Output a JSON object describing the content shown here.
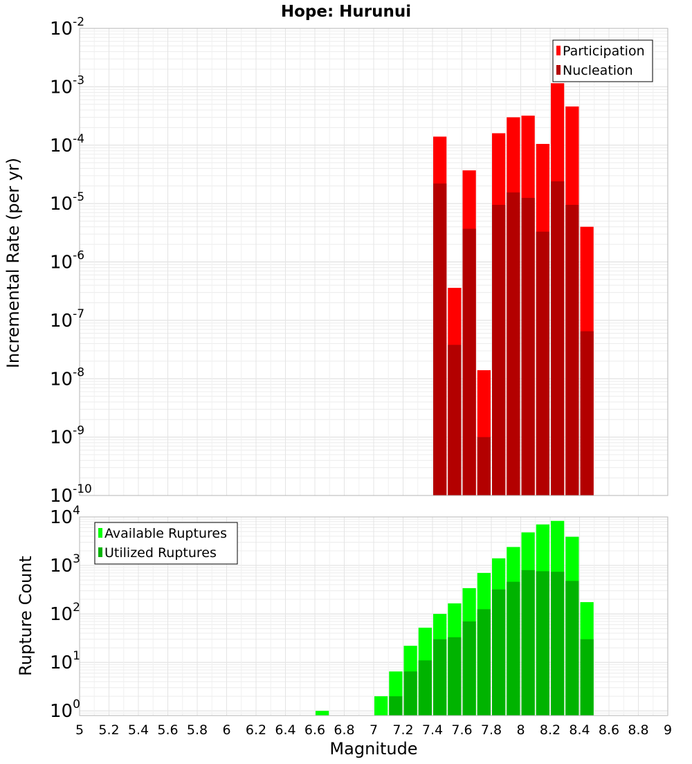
{
  "chart_data": [
    {
      "type": "bar",
      "title": "Hope: Hurunui",
      "xlabel": "",
      "ylabel": "Incremental Rate (per yr)",
      "yscale": "log",
      "xlim": [
        5,
        9
      ],
      "ylim": [
        1e-10,
        0.01
      ],
      "ytick_exponents": [
        -10,
        -9,
        -8,
        -7,
        -6,
        -5,
        -4,
        -3,
        -2
      ],
      "grid": true,
      "legend_position": "top-right",
      "bar_width": 0.1,
      "x": [
        7.45,
        7.55,
        7.65,
        7.75,
        7.85,
        7.95,
        8.05,
        8.15,
        8.25,
        8.35,
        8.45
      ],
      "series": [
        {
          "name": "Participation",
          "color": "#ff0000",
          "values": [
            0.00014,
            3.6e-07,
            3.7e-05,
            1.4e-08,
            0.00016,
            0.0003,
            0.00032,
            0.000105,
            0.00115,
            0.00046,
            4e-06
          ]
        },
        {
          "name": "Nucleation",
          "color": "#b30000",
          "values": [
            2.2e-05,
            3.8e-08,
            3.7e-06,
            1e-09,
            9.5e-06,
            1.55e-05,
            1.25e-05,
            3.3e-06,
            2.4e-05,
            9.5e-06,
            6.5e-08
          ]
        }
      ]
    },
    {
      "type": "bar",
      "title": "",
      "xlabel": "Magnitude",
      "ylabel": "Rupture Count",
      "yscale": "log",
      "xlim": [
        5,
        9
      ],
      "ylim": [
        0.8,
        10000
      ],
      "ytick_exponents": [
        0,
        1,
        2,
        3,
        4
      ],
      "xticks": [
        "5",
        "5.2",
        "5.4",
        "5.6",
        "5.8",
        "6",
        "6.2",
        "6.4",
        "6.6",
        "6.8",
        "7",
        "7.2",
        "7.4",
        "7.6",
        "7.8",
        "8",
        "8.2",
        "8.4",
        "8.6",
        "8.8",
        "9"
      ],
      "grid": true,
      "legend_position": "top-left",
      "bar_width": 0.1,
      "x": [
        6.65,
        7.05,
        7.15,
        7.25,
        7.35,
        7.45,
        7.55,
        7.65,
        7.75,
        7.85,
        7.95,
        8.05,
        8.15,
        8.25,
        8.35,
        8.45
      ],
      "series": [
        {
          "name": "Available Ruptures",
          "color": "#00ff00",
          "values": [
            1,
            2,
            6.5,
            22,
            52,
            100,
            165,
            340,
            700,
            1400,
            2400,
            4800,
            7000,
            8300,
            3900,
            175
          ]
        },
        {
          "name": "Utilized Ruptures",
          "color": "#00b300",
          "values": [
            0,
            0,
            2,
            6.5,
            11,
            30,
            33,
            70,
            125,
            320,
            460,
            800,
            760,
            740,
            480,
            30
          ]
        }
      ]
    }
  ]
}
